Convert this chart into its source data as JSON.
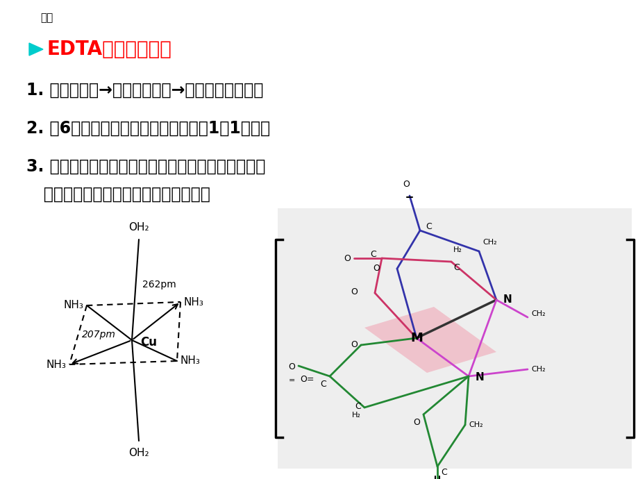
{
  "background_color": "#ffffff",
  "title_small": "续前",
  "title_main": "EDTA配合物特点：",
  "title_color": "#ff0000",
  "title_small_color": "#000000",
  "bullet_color": "#00cccc",
  "points": [
    "1. 广泛配位性→五元环螯合物→稳定、完全、迅速",
    "2. 具6个配位原子，与金属离子多形成1：1配合物",
    "3. 与无色金属离子形成的配合物无色，利于指示终点",
    "   与有色金属离子形成的配合物颜色更深"
  ],
  "text_color": "#000000",
  "font_size_title": 20,
  "font_size_body": 17,
  "box_bg": "#eeeeee",
  "blue_color": "#3333aa",
  "red_color": "#cc3366",
  "green_color": "#228833",
  "magenta_color": "#cc44cc",
  "dark_color": "#333333",
  "pink_plane": "#f0a0b0"
}
